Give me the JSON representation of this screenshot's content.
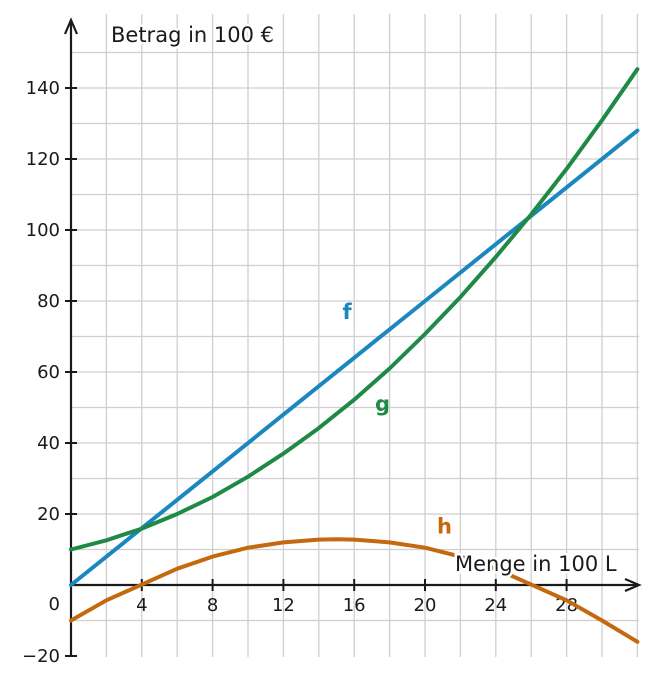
{
  "chart_data": {
    "type": "line",
    "ylabel": "Betrag in 100 €",
    "xlabel": "Menge in 100 L",
    "xlim": [
      0,
      32
    ],
    "ylim": [
      -20,
      150
    ],
    "grid": true,
    "x_ticks": [
      4,
      8,
      12,
      16,
      20,
      24,
      28
    ],
    "x_tick_labels": [
      "4",
      "8",
      "12",
      "16",
      "20",
      "24",
      "28"
    ],
    "y_ticks": [
      20,
      40,
      60,
      80,
      100,
      120,
      140
    ],
    "y_tick_labels": [
      "20",
      "40",
      "60",
      "80",
      "100",
      "120",
      "140"
    ],
    "y_extra_ticks": [
      0,
      -20
    ],
    "y_extra_tick_labels": [
      "0",
      "−20"
    ],
    "series": [
      {
        "name": "f",
        "color": "#1a87bf",
        "x": [
          0,
          4,
          8,
          12,
          16,
          20,
          24,
          28,
          32
        ],
        "y": [
          0,
          16,
          32,
          48,
          64,
          80,
          96,
          112,
          128
        ],
        "label_at": [
          15.6,
          75
        ]
      },
      {
        "name": "g",
        "color": "#1e8a45",
        "x": [
          0,
          2,
          4,
          6,
          8,
          10,
          12,
          14,
          16,
          18,
          20,
          22,
          24,
          26,
          28,
          30,
          32
        ],
        "y": [
          10,
          12.6,
          15.9,
          20,
          24.8,
          30.5,
          37,
          44.2,
          52.2,
          61,
          70.7,
          81.1,
          92.4,
          104.4,
          117.2,
          130.9,
          145.3
        ],
        "label_at": [
          17.6,
          49
        ]
      },
      {
        "name": "h",
        "color": "#c4690e",
        "x": [
          0,
          2,
          4,
          6,
          8,
          10,
          12,
          14,
          15,
          16,
          18,
          20,
          22,
          24,
          26,
          28,
          30,
          32
        ],
        "y": [
          -10,
          -4.3,
          0.1,
          4.6,
          8,
          10.5,
          12,
          12.8,
          12.9,
          12.8,
          12,
          10.5,
          8,
          4.6,
          0.1,
          -4.3,
          -10,
          -16
        ],
        "label_at": [
          21.1,
          14.5
        ]
      }
    ]
  }
}
